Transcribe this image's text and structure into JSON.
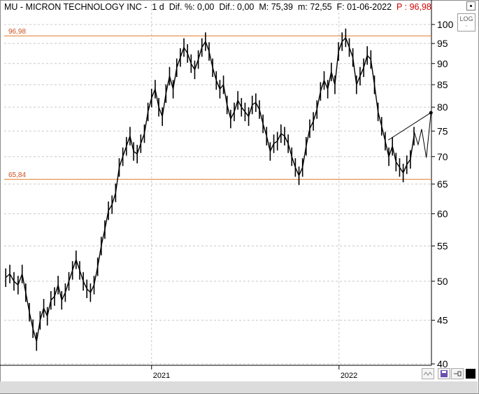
{
  "header": {
    "symbol_title": "MU - MICRON TECHNOLOGY INC -",
    "period": "1 d",
    "dif_pct_label": "Dif. %:",
    "dif_pct_value": "0,00",
    "dif_label": "Dif.:",
    "dif_value": "0,00",
    "max_label": "M:",
    "max_value": "75,39",
    "min_label": "m:",
    "min_value": "72,55",
    "date_label": "F:",
    "date_value": "01-06-2022",
    "price_label": "P :",
    "price_value": "96,98"
  },
  "colors": {
    "hline": "#e07a28",
    "hline_label": "#c8501e",
    "grid": "#c8c8c8",
    "price_red": "#d40000",
    "series": "#000000"
  },
  "logo": {
    "text": "LOG",
    "sub": "~"
  },
  "chart_data": {
    "type": "line",
    "subtype": "ohlc-bars",
    "title": "MU - MICRON TECHNOLOGY INC",
    "xlabel": "",
    "ylabel": "",
    "y_scale": "log",
    "ylim": [
      40,
      102
    ],
    "y_ticks": [
      40,
      45,
      50,
      55,
      60,
      65,
      70,
      75,
      80,
      85,
      90,
      95,
      100
    ],
    "xlim": [
      "2020-03-20",
      "2022-06-30"
    ],
    "x_ticks": [
      {
        "date": "2021-01-01",
        "label": "2021"
      },
      {
        "date": "2022-01-01",
        "label": "2022"
      }
    ],
    "grid": true,
    "horizontal_lines": [
      {
        "label": "96,98",
        "value": 96.98
      },
      {
        "label": "65,84",
        "value": 65.84
      }
    ],
    "trendline": {
      "from": {
        "date": "2022-04-07",
        "value": 73.2
      },
      "to": {
        "date": "2022-06-30",
        "value": 78.9
      }
    },
    "projection": [
      {
        "date": "2022-05-27",
        "value": 75.0
      },
      {
        "date": "2022-06-04",
        "value": 72.3
      },
      {
        "date": "2022-06-11",
        "value": 75.4
      },
      {
        "date": "2022-06-20",
        "value": 69.8
      },
      {
        "date": "2022-06-29",
        "value": 78.8
      }
    ],
    "series": [
      {
        "x": [
          "2020-03-23",
          "2020-03-31",
          "2020-04-08",
          "2020-04-16",
          "2020-04-24",
          "2020-05-01",
          "2020-05-08",
          "2020-05-15",
          "2020-05-22",
          "2020-05-29",
          "2020-06-05",
          "2020-06-12",
          "2020-06-19",
          "2020-06-26",
          "2020-07-03",
          "2020-07-10",
          "2020-07-17",
          "2020-07-24",
          "2020-07-31",
          "2020-08-07",
          "2020-08-14",
          "2020-08-21",
          "2020-08-28",
          "2020-09-04",
          "2020-09-11",
          "2020-09-18",
          "2020-09-25",
          "2020-10-02",
          "2020-10-09",
          "2020-10-16",
          "2020-10-23",
          "2020-10-30",
          "2020-11-06",
          "2020-11-13",
          "2020-11-20",
          "2020-11-27",
          "2020-12-04",
          "2020-12-11",
          "2020-12-18",
          "2020-12-25",
          "2021-01-01",
          "2021-01-08",
          "2021-01-15",
          "2021-01-22",
          "2021-01-29",
          "2021-02-05",
          "2021-02-12",
          "2021-02-19",
          "2021-02-26",
          "2021-03-05",
          "2021-03-12",
          "2021-03-19",
          "2021-03-26",
          "2021-04-02",
          "2021-04-09",
          "2021-04-16",
          "2021-04-23",
          "2021-04-30",
          "2021-05-07",
          "2021-05-14",
          "2021-05-21",
          "2021-05-28",
          "2021-06-04",
          "2021-06-11",
          "2021-06-18",
          "2021-06-25",
          "2021-07-02",
          "2021-07-09",
          "2021-07-16",
          "2021-07-23",
          "2021-07-30",
          "2021-08-06",
          "2021-08-13",
          "2021-08-20",
          "2021-08-27",
          "2021-09-03",
          "2021-09-10",
          "2021-09-17",
          "2021-09-24",
          "2021-10-01",
          "2021-10-08",
          "2021-10-15",
          "2021-10-22",
          "2021-10-29",
          "2021-11-05",
          "2021-11-12",
          "2021-11-19",
          "2021-11-26",
          "2021-12-03",
          "2021-12-10",
          "2021-12-17",
          "2021-12-24",
          "2021-12-31",
          "2022-01-07",
          "2022-01-14",
          "2022-01-21",
          "2022-01-28",
          "2022-02-04",
          "2022-02-11",
          "2022-02-18",
          "2022-02-25",
          "2022-03-04",
          "2022-03-11",
          "2022-03-18",
          "2022-03-25",
          "2022-04-01",
          "2022-04-08",
          "2022-04-15",
          "2022-04-22",
          "2022-04-29",
          "2022-05-06",
          "2022-05-13",
          "2022-05-20",
          "2022-05-27"
        ],
        "values": [
          50.5,
          51.0,
          50.0,
          49.5,
          51.0,
          48.5,
          46.0,
          44.0,
          42.5,
          45.0,
          46.5,
          45.5,
          47.5,
          48.0,
          49.5,
          47.5,
          48.5,
          50.0,
          51.5,
          53.0,
          51.5,
          50.0,
          49.0,
          48.5,
          49.5,
          52.0,
          55.0,
          57.5,
          60.5,
          61.5,
          63.5,
          68.0,
          70.0,
          72.0,
          74.0,
          71.0,
          70.5,
          72.5,
          74.5,
          79.0,
          82.0,
          84.0,
          80.0,
          78.0,
          83.0,
          87.0,
          84.0,
          89.0,
          91.5,
          94.0,
          92.5,
          90.0,
          88.5,
          91.0,
          94.0,
          95.5,
          93.0,
          89.0,
          86.0,
          84.0,
          85.0,
          80.5,
          77.5,
          79.0,
          81.5,
          80.0,
          79.0,
          78.0,
          80.5,
          81.0,
          79.5,
          76.5,
          74.0,
          71.0,
          72.5,
          73.0,
          74.5,
          74.0,
          72.5,
          70.0,
          68.0,
          66.5,
          68.0,
          72.0,
          75.5,
          77.0,
          79.5,
          83.5,
          86.0,
          84.0,
          88.0,
          85.0,
          93.0,
          95.5,
          96.5,
          94.0,
          91.5,
          85.0,
          87.0,
          89.0,
          92.0,
          91.0,
          85.0,
          79.0,
          76.0,
          73.0,
          70.0,
          72.0,
          69.0,
          68.0,
          67.0,
          68.5,
          69.5,
          74.0
        ]
      }
    ]
  },
  "bottom_bar": {
    "save_icon": "save-icon",
    "pin_icon": "pin-icon",
    "wave_icon": "wave-icon",
    "color_icon": "color-swatch-icon"
  }
}
